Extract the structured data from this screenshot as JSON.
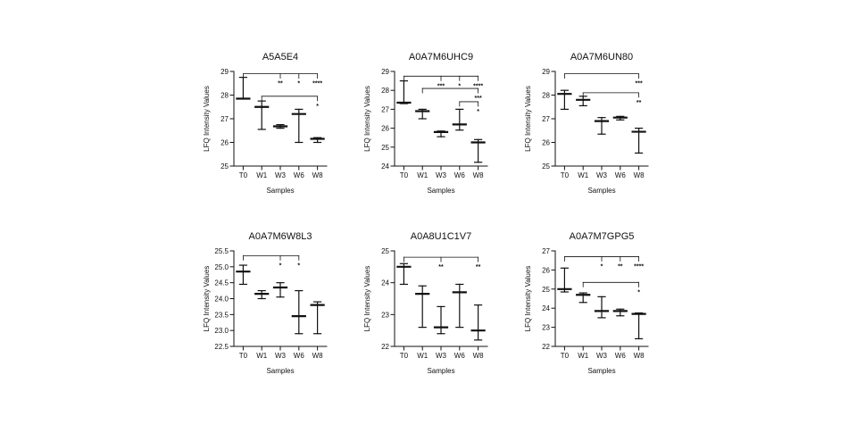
{
  "colors": {
    "ink": "#111111",
    "background": "#ffffff"
  },
  "chart_data": [
    {
      "type": "box",
      "title": "A5A5E4",
      "xlabel": "Samples",
      "ylabel": "LFQ Intensity Values",
      "categories": [
        "T0",
        "W1",
        "W3",
        "W6",
        "W8"
      ],
      "ylim": [
        25,
        29
      ],
      "yticks": [
        "25",
        "26",
        "27",
        "28",
        "29"
      ],
      "series": [
        {
          "name": "T0",
          "min": 27.85,
          "median": 27.85,
          "max": 28.75
        },
        {
          "name": "W1",
          "min": 26.55,
          "median": 27.5,
          "max": 27.75
        },
        {
          "name": "W3",
          "min": 26.6,
          "median": 26.68,
          "max": 26.75
        },
        {
          "name": "W6",
          "min": 26.0,
          "median": 27.2,
          "max": 27.4
        },
        {
          "name": "W8",
          "min": 26.0,
          "median": 26.15,
          "max": 26.2
        }
      ],
      "significance": [
        {
          "from": "T0",
          "to": "W8",
          "level": 28.9,
          "marks": [
            {
              "at": "W3",
              "label": "**"
            },
            {
              "at": "W6",
              "label": "*"
            },
            {
              "at": "W8",
              "label": "****"
            }
          ]
        },
        {
          "from": "W1",
          "to": "W8",
          "level": 27.95,
          "marks": [
            {
              "at": "W8",
              "label": "*"
            }
          ]
        }
      ]
    },
    {
      "type": "box",
      "title": "A0A7M6UHC9",
      "xlabel": "Samples",
      "ylabel": "LFQ Intensity Values",
      "categories": [
        "T0",
        "W1",
        "W3",
        "W6",
        "W8"
      ],
      "ylim": [
        24,
        29
      ],
      "yticks": [
        "24",
        "25",
        "26",
        "27",
        "28",
        "29"
      ],
      "series": [
        {
          "name": "T0",
          "min": 27.3,
          "median": 27.35,
          "max": 28.5
        },
        {
          "name": "W1",
          "min": 26.5,
          "median": 26.9,
          "max": 27.0
        },
        {
          "name": "W3",
          "min": 25.55,
          "median": 25.8,
          "max": 25.85
        },
        {
          "name": "W6",
          "min": 25.9,
          "median": 26.2,
          "max": 27.0
        },
        {
          "name": "W8",
          "min": 24.2,
          "median": 25.25,
          "max": 25.4
        }
      ],
      "significance": [
        {
          "from": "T0",
          "to": "W8",
          "level": 28.75,
          "marks": [
            {
              "at": "W3",
              "label": "***"
            },
            {
              "at": "W6",
              "label": "*"
            },
            {
              "at": "W8",
              "label": "****"
            }
          ]
        },
        {
          "from": "W1",
          "to": "W8",
          "level": 28.1,
          "marks": [
            {
              "at": "W8",
              "label": "***"
            }
          ]
        },
        {
          "from": "W6",
          "to": "W8",
          "level": 27.4,
          "marks": [
            {
              "at": "W8",
              "label": "*"
            }
          ]
        }
      ]
    },
    {
      "type": "box",
      "title": "A0A7M6UN80",
      "xlabel": "Samples",
      "ylabel": "LFQ Intensity Values",
      "categories": [
        "T0",
        "W1",
        "W3",
        "W6",
        "W8"
      ],
      "ylim": [
        25,
        29
      ],
      "yticks": [
        "25",
        "26",
        "27",
        "28",
        "29"
      ],
      "series": [
        {
          "name": "T0",
          "min": 27.4,
          "median": 28.05,
          "max": 28.2
        },
        {
          "name": "W1",
          "min": 27.55,
          "median": 27.8,
          "max": 27.95
        },
        {
          "name": "W3",
          "min": 26.35,
          "median": 26.9,
          "max": 27.05
        },
        {
          "name": "W6",
          "min": 26.95,
          "median": 27.05,
          "max": 27.1
        },
        {
          "name": "W8",
          "min": 25.55,
          "median": 26.45,
          "max": 26.6
        }
      ],
      "significance": [
        {
          "from": "T0",
          "to": "W8",
          "level": 28.9,
          "marks": [
            {
              "at": "W8",
              "label": "***"
            }
          ]
        },
        {
          "from": "W1",
          "to": "W8",
          "level": 28.1,
          "marks": [
            {
              "at": "W8",
              "label": "**"
            }
          ]
        }
      ]
    },
    {
      "type": "box",
      "title": "A0A7M6W8L3",
      "xlabel": "Samples",
      "ylabel": "LFQ Intensity Values",
      "categories": [
        "T0",
        "W1",
        "W3",
        "W6",
        "W8"
      ],
      "ylim": [
        22.5,
        25.5
      ],
      "yticks": [
        "22.5",
        "23.0",
        "23.5",
        "24.0",
        "24.5",
        "25.0",
        "25.5"
      ],
      "series": [
        {
          "name": "T0",
          "min": 24.45,
          "median": 24.85,
          "max": 25.05
        },
        {
          "name": "W1",
          "min": 24.0,
          "median": 24.15,
          "max": 24.25
        },
        {
          "name": "W3",
          "min": 24.05,
          "median": 24.35,
          "max": 24.5
        },
        {
          "name": "W6",
          "min": 22.9,
          "median": 23.45,
          "max": 24.25
        },
        {
          "name": "W8",
          "min": 22.9,
          "median": 23.8,
          "max": 23.9
        }
      ],
      "significance": [
        {
          "from": "T0",
          "to": "W6",
          "level": 25.35,
          "marks": [
            {
              "at": "W3",
              "label": "*"
            },
            {
              "at": "W6",
              "label": "*"
            }
          ]
        }
      ]
    },
    {
      "type": "box",
      "title": "A0A8U1C1V7",
      "xlabel": "Samples",
      "ylabel": "LFQ Intensity Values",
      "categories": [
        "T0",
        "W1",
        "W3",
        "W6",
        "W8"
      ],
      "ylim": [
        22,
        25
      ],
      "yticks": [
        "22",
        "23",
        "24",
        "25"
      ],
      "series": [
        {
          "name": "T0",
          "min": 23.95,
          "median": 24.5,
          "max": 24.6
        },
        {
          "name": "W1",
          "min": 22.6,
          "median": 23.65,
          "max": 23.9
        },
        {
          "name": "W3",
          "min": 22.4,
          "median": 22.6,
          "max": 23.25
        },
        {
          "name": "W6",
          "min": 22.6,
          "median": 23.7,
          "max": 23.95
        },
        {
          "name": "W8",
          "min": 22.2,
          "median": 22.5,
          "max": 23.3
        }
      ],
      "significance": [
        {
          "from": "T0",
          "to": "W8",
          "level": 24.8,
          "marks": [
            {
              "at": "W3",
              "label": "**"
            },
            {
              "at": "W8",
              "label": "**"
            }
          ]
        }
      ]
    },
    {
      "type": "box",
      "title": "A0A7M7GPG5",
      "xlabel": "Samples",
      "ylabel": "LFQ Intensity Values",
      "categories": [
        "T0",
        "W1",
        "W3",
        "W6",
        "W8"
      ],
      "ylim": [
        22,
        27
      ],
      "yticks": [
        "22",
        "23",
        "24",
        "25",
        "26",
        "27"
      ],
      "series": [
        {
          "name": "T0",
          "min": 24.85,
          "median": 25.0,
          "max": 26.1
        },
        {
          "name": "W1",
          "min": 24.3,
          "median": 24.7,
          "max": 24.8
        },
        {
          "name": "W3",
          "min": 23.5,
          "median": 23.85,
          "max": 24.6
        },
        {
          "name": "W6",
          "min": 23.6,
          "median": 23.85,
          "max": 23.95
        },
        {
          "name": "W8",
          "min": 22.4,
          "median": 23.7,
          "max": 23.75
        }
      ],
      "significance": [
        {
          "from": "T0",
          "to": "W8",
          "level": 26.7,
          "marks": [
            {
              "at": "W3",
              "label": "*"
            },
            {
              "at": "W6",
              "label": "**"
            },
            {
              "at": "W8",
              "label": "****"
            }
          ]
        },
        {
          "from": "W1",
          "to": "W8",
          "level": 25.35,
          "marks": [
            {
              "at": "W8",
              "label": "*"
            }
          ]
        }
      ]
    }
  ]
}
